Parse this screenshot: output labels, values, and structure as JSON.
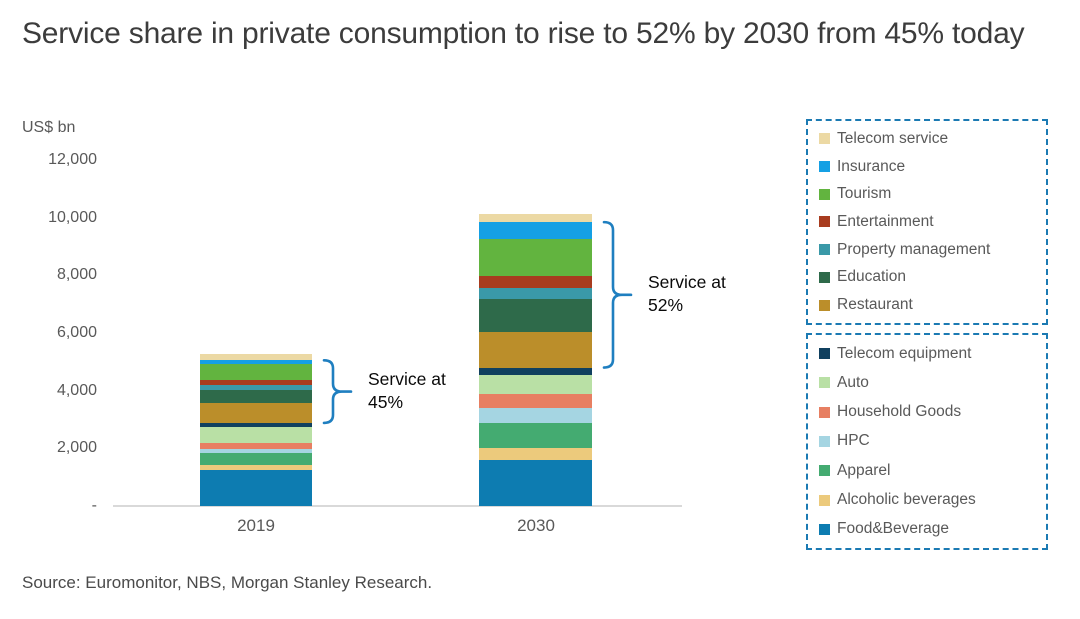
{
  "page": {
    "title": "Service share in private consumption to rise to 52% by 2030 from 45% today",
    "source": "Source: Euromonitor, NBS, Morgan Stanley Research."
  },
  "chart_data": {
    "type": "bar",
    "stacked": true,
    "unit_label": "US$ bn",
    "categories": [
      "2019",
      "2030"
    ],
    "ylim": [
      0,
      12000
    ],
    "ytick_interval": 2000,
    "ytick_labels": [
      "-",
      "2,000",
      "4,000",
      "6,000",
      "8,000",
      "10,000",
      "12,000"
    ],
    "grid": false,
    "accent_color": "#1f7fc0",
    "series_bottom_to_top": [
      {
        "name": "Food&Beverage",
        "color": "#0d7cb1",
        "values": [
          1250,
          1600
        ]
      },
      {
        "name": "Alcoholic beverages",
        "color": "#ecca7c",
        "values": [
          170,
          420
        ]
      },
      {
        "name": "Apparel",
        "color": "#44ab71",
        "values": [
          420,
          860
        ]
      },
      {
        "name": "HPC",
        "color": "#a5d5e2",
        "values": [
          150,
          510
        ]
      },
      {
        "name": "Household Goods",
        "color": "#e77f62",
        "values": [
          200,
          480
        ]
      },
      {
        "name": "Auto",
        "color": "#b9e0a5",
        "values": [
          550,
          660
        ]
      },
      {
        "name": "Telecom equipment",
        "color": "#10405f",
        "values": [
          140,
          270
        ]
      },
      {
        "name": "Restaurant",
        "color": "#bb8e2a",
        "values": [
          690,
          1240
        ]
      },
      {
        "name": "Education",
        "color": "#2e6a4a",
        "values": [
          450,
          1140
        ]
      },
      {
        "name": "Property management",
        "color": "#3a99a8",
        "values": [
          170,
          380
        ]
      },
      {
        "name": "Entertainment",
        "color": "#a83c1f",
        "values": [
          180,
          410
        ]
      },
      {
        "name": "Tourism",
        "color": "#62b43f",
        "values": [
          540,
          1280
        ]
      },
      {
        "name": "Insurance",
        "color": "#15a0e4",
        "values": [
          140,
          590
        ]
      },
      {
        "name": "Telecom service",
        "color": "#ecd9a4",
        "values": [
          210,
          280
        ]
      }
    ],
    "annotations": [
      {
        "category": "2019",
        "lines": [
          "Service at",
          "45%"
        ]
      },
      {
        "category": "2030",
        "lines": [
          "Service at",
          "52%"
        ]
      }
    ],
    "legend": {
      "border_color": "#1b7ab3",
      "services_group": [
        "Telecom service",
        "Insurance",
        "Tourism",
        "Entertainment",
        "Property management",
        "Education",
        "Restaurant"
      ],
      "goods_group": [
        "Telecom equipment",
        "Auto",
        "Household Goods",
        "HPC",
        "Apparel",
        "Alcoholic beverages",
        "Food&Beverage"
      ]
    }
  }
}
